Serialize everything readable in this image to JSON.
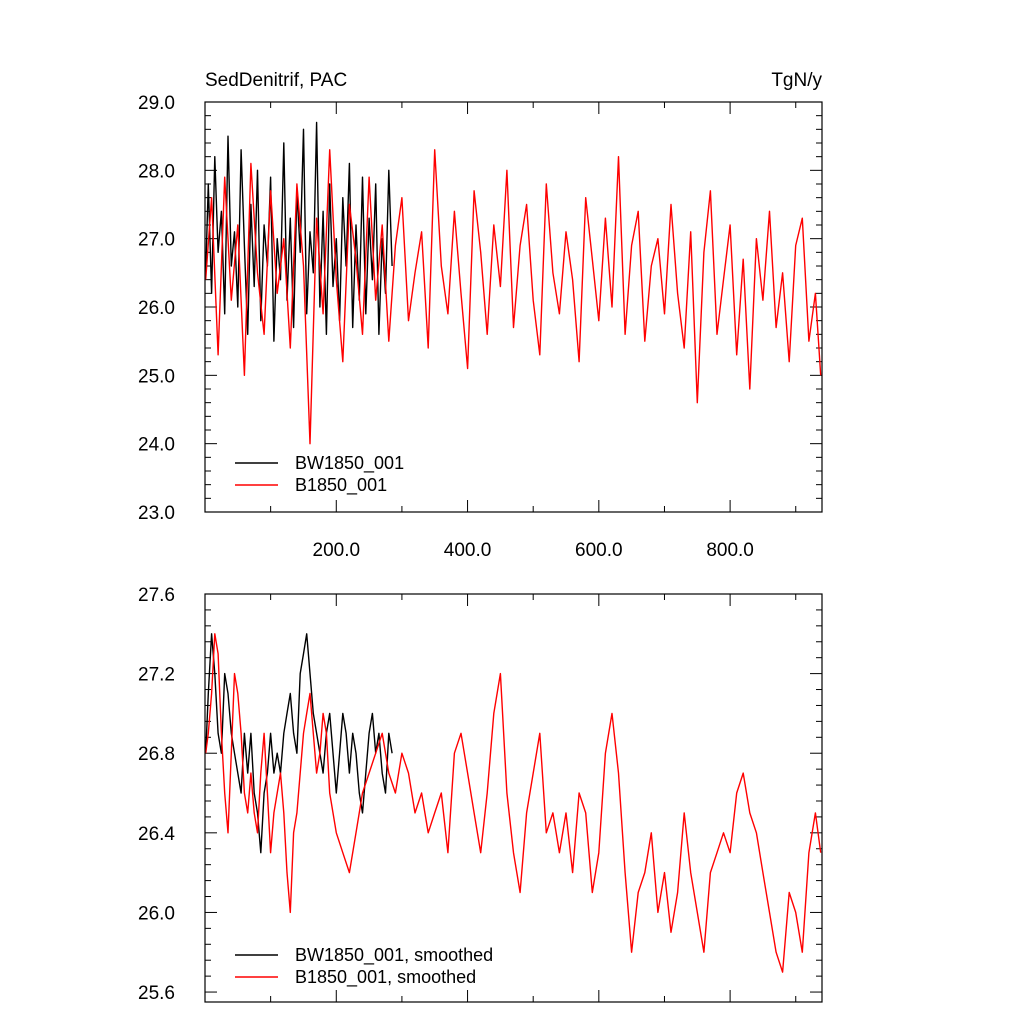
{
  "colors": {
    "series_a": "#000000",
    "series_b": "#ff0000",
    "frame": "#000000"
  },
  "chart_data": [
    {
      "type": "line",
      "title": "SedDenitrif, PAC",
      "units": "TgN/y",
      "xlim": [
        0,
        940
      ],
      "ylim": [
        23.0,
        29.0
      ],
      "x_ticks": [
        200,
        400,
        600,
        800
      ],
      "x_tick_labels": [
        "200.0",
        "400.0",
        "600.0",
        "800.0"
      ],
      "y_ticks": [
        23,
        24,
        25,
        26,
        27,
        28,
        29
      ],
      "y_tick_labels": [
        "23.0",
        "24.0",
        "25.0",
        "26.0",
        "27.0",
        "28.0",
        "29.0"
      ],
      "legend": "bottom-left",
      "series": [
        {
          "name": "BW1850_001",
          "color": "#000000",
          "x": [
            1,
            5,
            10,
            15,
            20,
            25,
            30,
            35,
            40,
            45,
            50,
            55,
            60,
            65,
            70,
            75,
            80,
            85,
            90,
            95,
            100,
            105,
            110,
            115,
            120,
            125,
            130,
            135,
            140,
            145,
            150,
            155,
            160,
            165,
            170,
            175,
            180,
            185,
            190,
            195,
            200,
            205,
            210,
            215,
            220,
            225,
            230,
            235,
            240,
            245,
            250,
            255,
            260,
            265,
            270,
            275,
            280,
            285
          ],
          "values": [
            26.5,
            27.8,
            26.2,
            28.2,
            26.8,
            27.4,
            25.9,
            28.5,
            26.6,
            27.1,
            26.0,
            28.3,
            26.9,
            25.6,
            27.5,
            26.3,
            28.0,
            25.8,
            27.2,
            26.6,
            27.9,
            25.5,
            27.0,
            26.4,
            28.4,
            26.1,
            27.3,
            25.7,
            27.7,
            26.8,
            28.6,
            25.9,
            27.1,
            26.5,
            28.7,
            26.0,
            27.4,
            25.6,
            27.8,
            26.3,
            27.0,
            25.8,
            27.6,
            26.6,
            28.1,
            25.7,
            27.2,
            26.1,
            27.9,
            25.9,
            27.3,
            26.4,
            27.8,
            25.6,
            27.0,
            26.2,
            28.0,
            26.6
          ]
        },
        {
          "name": "B1850_001",
          "color": "#ff0000",
          "x": [
            1,
            10,
            20,
            30,
            40,
            50,
            60,
            70,
            80,
            90,
            100,
            110,
            120,
            130,
            140,
            150,
            160,
            170,
            180,
            190,
            200,
            210,
            220,
            230,
            240,
            250,
            260,
            270,
            280,
            290,
            300,
            310,
            320,
            330,
            340,
            350,
            360,
            370,
            380,
            390,
            400,
            410,
            420,
            430,
            440,
            450,
            460,
            470,
            480,
            490,
            500,
            510,
            520,
            530,
            540,
            550,
            560,
            570,
            580,
            590,
            600,
            610,
            620,
            630,
            640,
            650,
            660,
            670,
            680,
            690,
            700,
            710,
            720,
            730,
            740,
            750,
            760,
            770,
            780,
            790,
            800,
            810,
            820,
            830,
            840,
            850,
            860,
            870,
            880,
            890,
            900,
            910,
            920,
            930,
            938
          ],
          "values": [
            26.4,
            27.6,
            25.3,
            27.9,
            26.1,
            27.2,
            25.0,
            28.1,
            26.5,
            25.6,
            27.7,
            26.2,
            27.0,
            25.4,
            27.8,
            26.6,
            24.0,
            27.3,
            25.9,
            28.3,
            26.4,
            25.2,
            27.5,
            26.7,
            25.6,
            27.9,
            26.1,
            27.2,
            25.5,
            26.9,
            27.6,
            25.8,
            26.5,
            27.1,
            25.4,
            28.3,
            26.6,
            25.9,
            27.4,
            26.2,
            25.1,
            27.7,
            26.8,
            25.6,
            27.2,
            26.3,
            28.0,
            25.7,
            26.9,
            27.5,
            26.1,
            25.3,
            27.8,
            26.5,
            25.9,
            27.1,
            26.4,
            25.2,
            27.6,
            26.7,
            25.8,
            27.3,
            26.0,
            28.2,
            25.6,
            26.9,
            27.4,
            25.5,
            26.6,
            27.0,
            25.9,
            27.5,
            26.2,
            25.4,
            27.1,
            24.6,
            26.8,
            27.7,
            25.6,
            26.4,
            27.2,
            25.3,
            26.7,
            24.8,
            27.0,
            26.1,
            27.4,
            25.7,
            26.5,
            25.2,
            26.9,
            27.3,
            25.5,
            26.2,
            25.0
          ]
        }
      ]
    },
    {
      "type": "line",
      "title": "",
      "xlim": [
        0,
        940
      ],
      "ylim": [
        25.55,
        27.6
      ],
      "y_ticks": [
        25.6,
        26.0,
        26.4,
        26.8,
        27.2,
        27.6
      ],
      "y_tick_labels": [
        "25.6",
        "26.0",
        "26.4",
        "26.8",
        "27.2",
        "27.6"
      ],
      "legend": "bottom-left",
      "series": [
        {
          "name": "BW1850_001, smoothed",
          "color": "#000000",
          "x": [
            1,
            5,
            10,
            15,
            20,
            25,
            30,
            35,
            40,
            45,
            50,
            55,
            60,
            65,
            70,
            75,
            80,
            85,
            90,
            95,
            100,
            105,
            110,
            115,
            120,
            125,
            130,
            135,
            140,
            145,
            150,
            155,
            160,
            165,
            170,
            175,
            180,
            185,
            190,
            195,
            200,
            205,
            210,
            215,
            220,
            225,
            230,
            235,
            240,
            245,
            250,
            255,
            260,
            265,
            270,
            275,
            280,
            285
          ],
          "values": [
            26.8,
            27.1,
            27.4,
            27.2,
            26.9,
            26.8,
            27.2,
            27.1,
            26.9,
            26.8,
            26.7,
            26.6,
            26.9,
            26.7,
            26.9,
            26.6,
            26.5,
            26.3,
            26.6,
            26.7,
            26.9,
            26.7,
            26.8,
            26.7,
            26.9,
            27.0,
            27.1,
            26.9,
            26.8,
            27.2,
            27.3,
            27.4,
            27.2,
            27.0,
            26.9,
            26.8,
            26.7,
            26.9,
            27.0,
            26.8,
            26.6,
            26.8,
            27.0,
            26.9,
            26.7,
            26.9,
            26.8,
            26.6,
            26.5,
            26.7,
            26.9,
            27.0,
            26.8,
            26.9,
            26.7,
            26.6,
            26.9,
            26.8
          ]
        },
        {
          "name": "B1850_001, smoothed",
          "color": "#ff0000",
          "x": [
            1,
            5,
            10,
            15,
            20,
            25,
            30,
            35,
            40,
            45,
            50,
            55,
            60,
            65,
            70,
            75,
            80,
            85,
            90,
            95,
            100,
            105,
            110,
            115,
            120,
            125,
            130,
            135,
            140,
            145,
            150,
            155,
            160,
            165,
            170,
            175,
            180,
            185,
            190,
            195,
            200,
            210,
            220,
            230,
            240,
            250,
            260,
            270,
            280,
            290,
            300,
            310,
            320,
            330,
            340,
            350,
            360,
            370,
            380,
            390,
            400,
            410,
            420,
            430,
            440,
            450,
            460,
            470,
            480,
            490,
            500,
            510,
            520,
            530,
            540,
            550,
            560,
            570,
            580,
            590,
            600,
            610,
            620,
            630,
            640,
            650,
            660,
            670,
            680,
            690,
            700,
            710,
            720,
            730,
            740,
            750,
            760,
            770,
            780,
            790,
            800,
            810,
            820,
            830,
            840,
            850,
            860,
            870,
            880,
            890,
            900,
            910,
            920,
            930,
            938
          ],
          "values": [
            26.8,
            26.9,
            27.1,
            27.4,
            27.3,
            26.9,
            26.6,
            26.4,
            26.8,
            27.2,
            27.1,
            26.9,
            26.6,
            26.5,
            26.7,
            26.5,
            26.4,
            26.7,
            26.9,
            26.6,
            26.3,
            26.5,
            26.6,
            26.7,
            26.5,
            26.2,
            26.0,
            26.4,
            26.5,
            26.7,
            26.9,
            27.0,
            27.1,
            26.9,
            26.7,
            26.8,
            27.0,
            26.9,
            26.6,
            26.5,
            26.4,
            26.3,
            26.2,
            26.4,
            26.6,
            26.7,
            26.8,
            26.9,
            26.7,
            26.6,
            26.8,
            26.7,
            26.5,
            26.6,
            26.4,
            26.5,
            26.6,
            26.3,
            26.8,
            26.9,
            26.7,
            26.5,
            26.3,
            26.6,
            27.0,
            27.2,
            26.6,
            26.3,
            26.1,
            26.5,
            26.7,
            26.9,
            26.4,
            26.5,
            26.3,
            26.5,
            26.2,
            26.6,
            26.5,
            26.1,
            26.3,
            26.8,
            27.0,
            26.7,
            26.2,
            25.8,
            26.1,
            26.2,
            26.4,
            26.0,
            26.2,
            25.9,
            26.1,
            26.5,
            26.2,
            26.0,
            25.8,
            26.2,
            26.3,
            26.4,
            26.3,
            26.6,
            26.7,
            26.5,
            26.4,
            26.2,
            26.0,
            25.8,
            25.7,
            26.1,
            26.0,
            25.8,
            26.3,
            26.5,
            26.3
          ]
        }
      ]
    }
  ]
}
